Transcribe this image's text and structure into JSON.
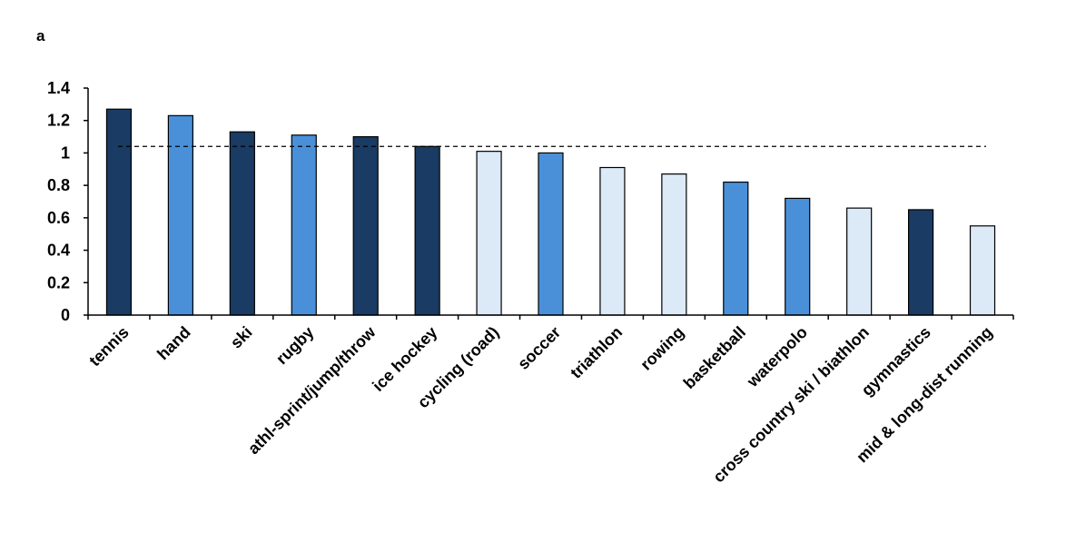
{
  "panel_label": "a",
  "chart_data": {
    "type": "bar",
    "categories": [
      "tennis",
      "hand",
      "ski",
      "rugby",
      "athl-sprint/jump/throw",
      "ice hockey",
      "cycling (road)",
      "soccer",
      "triathlon",
      "rowing",
      "basketball",
      "waterpolo",
      "cross country ski / biathlon",
      "gymnastics",
      "mid & long-dist running"
    ],
    "values": [
      1.27,
      1.23,
      1.13,
      1.11,
      1.1,
      1.04,
      1.01,
      1.0,
      0.91,
      0.87,
      0.82,
      0.72,
      0.66,
      0.65,
      0.55
    ],
    "bar_colors": [
      "#1a3b63",
      "#4a90d9",
      "#1a3b63",
      "#4a90d9",
      "#1a3b63",
      "#1a3b63",
      "#dce9f7",
      "#4a90d9",
      "#dce9f7",
      "#dce9f7",
      "#4a90d9",
      "#4a90d9",
      "#dce9f7",
      "#1a3b63",
      "#dce9f7"
    ],
    "yticks": [
      "0",
      "0.2",
      "0.4",
      "0.6",
      "0.8",
      "1",
      "1.2",
      "1.4"
    ],
    "ylim": [
      0,
      1.4
    ],
    "reference_line": 1.04,
    "reference_line_style": "dashed",
    "grid": false,
    "legend": "none",
    "title": "",
    "xlabel": "",
    "ylabel": ""
  }
}
